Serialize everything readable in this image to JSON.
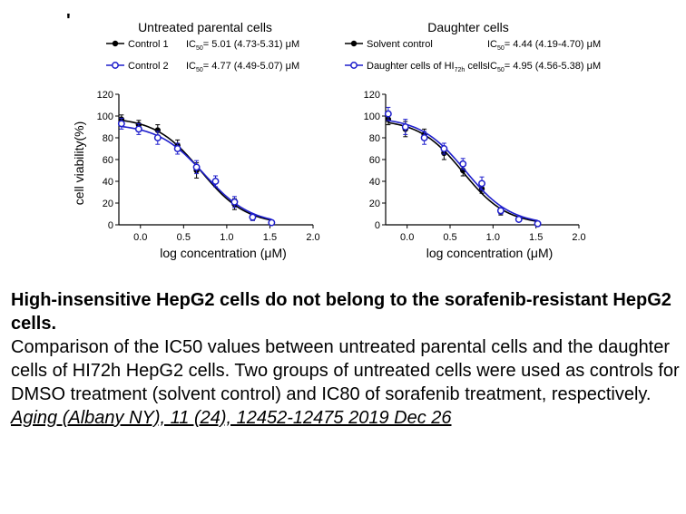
{
  "figure_marker": "'",
  "chart_data": [
    {
      "type": "line",
      "title": "Untreated parental cells",
      "xlabel": "log concentration (μM)",
      "ylabel": "cell viability(%)",
      "xlim": [
        -0.25,
        2.0
      ],
      "ylim": [
        0,
        120
      ],
      "xticks": [
        0.0,
        0.5,
        1.0,
        1.5,
        2.0
      ],
      "xtick_labels": [
        "0.0",
        "0.5",
        "1.0",
        "1.5",
        "2.0"
      ],
      "yticks": [
        0,
        20,
        40,
        60,
        80,
        100,
        120
      ],
      "ytick_labels": [
        "0",
        "20",
        "40",
        "60",
        "80",
        "100",
        "120"
      ],
      "legend_position": "top",
      "series": [
        {
          "name": "Control 1",
          "ic50_prefix": "IC",
          "ic50_sub": "50",
          "ic50_value": "= 5.01 (4.73-5.31) μM",
          "color": "#000000",
          "marker": "filled-circle",
          "x": [
            -0.22,
            -0.02,
            0.2,
            0.43,
            0.65,
            0.87,
            1.09,
            1.3,
            1.52
          ],
          "y": [
            97,
            92,
            87,
            73,
            50,
            40,
            19,
            7,
            2
          ],
          "err": [
            4,
            4,
            5,
            5,
            7,
            5,
            5,
            3,
            1
          ]
        },
        {
          "name": "Control 2",
          "ic50_prefix": "IC",
          "ic50_sub": "50",
          "ic50_value": "= 4.77 (4.49-5.07) μM",
          "color": "#1f1fcc",
          "marker": "open-circle",
          "x": [
            -0.22,
            -0.02,
            0.2,
            0.43,
            0.65,
            0.87,
            1.09,
            1.3,
            1.52
          ],
          "y": [
            93,
            88,
            80,
            70,
            53,
            40,
            21,
            7,
            2
          ],
          "err": [
            5,
            5,
            6,
            5,
            6,
            5,
            5,
            3,
            1
          ]
        }
      ]
    },
    {
      "type": "line",
      "title": "Daughter cells",
      "xlabel": "log concentration (μM)",
      "ylabel": "",
      "xlim": [
        -0.25,
        2.0
      ],
      "ylim": [
        0,
        120
      ],
      "xticks": [
        0.0,
        0.5,
        1.0,
        1.5,
        2.0
      ],
      "xtick_labels": [
        "0.0",
        "0.5",
        "1.0",
        "1.5",
        "2.0"
      ],
      "yticks": [
        0,
        20,
        40,
        60,
        80,
        100,
        120
      ],
      "ytick_labels": [
        "0",
        "20",
        "40",
        "60",
        "80",
        "100",
        "120"
      ],
      "legend_position": "top",
      "series": [
        {
          "name": "Solvent control",
          "name_sub": "",
          "name_tail": "",
          "ic50_prefix": "IC",
          "ic50_sub": "50",
          "ic50_value": "= 4.44 (4.19-4.70) μM",
          "color": "#000000",
          "marker": "filled-circle",
          "x": [
            -0.22,
            -0.02,
            0.2,
            0.43,
            0.65,
            0.87,
            1.09,
            1.3,
            1.52
          ],
          "y": [
            97,
            88,
            83,
            66,
            50,
            33,
            12,
            5,
            1
          ],
          "err": [
            5,
            7,
            5,
            6,
            5,
            4,
            3,
            2,
            1
          ]
        },
        {
          "name": "Daughter cells of HI",
          "name_sub": "72h",
          "name_tail": " cells",
          "ic50_prefix": "IC",
          "ic50_sub": "50",
          "ic50_value": "= 4.95 (4.56-5.38) μM",
          "color": "#1f1fcc",
          "marker": "open-circle",
          "x": [
            -0.22,
            -0.02,
            0.2,
            0.43,
            0.65,
            0.87,
            1.09,
            1.3,
            1.52
          ],
          "y": [
            102,
            90,
            80,
            70,
            56,
            38,
            13,
            5,
            1
          ],
          "err": [
            6,
            7,
            6,
            5,
            5,
            6,
            3,
            2,
            1
          ]
        }
      ]
    }
  ],
  "caption": {
    "title": "High-insensitive HepG2 cells do not belong to the sorafenib-resistant HepG2 cells.",
    "body": "Comparison of the IC50 values between untreated parental cells and the daughter cells of HI72h HepG2 cells. Two groups of untreated cells were used as controls for DMSO treatment (solvent control) and IC80 of sorafenib treatment, respectively.",
    "citation": "Aging (Albany NY), 11 (24), 12452-12475  2019 Dec 26"
  }
}
